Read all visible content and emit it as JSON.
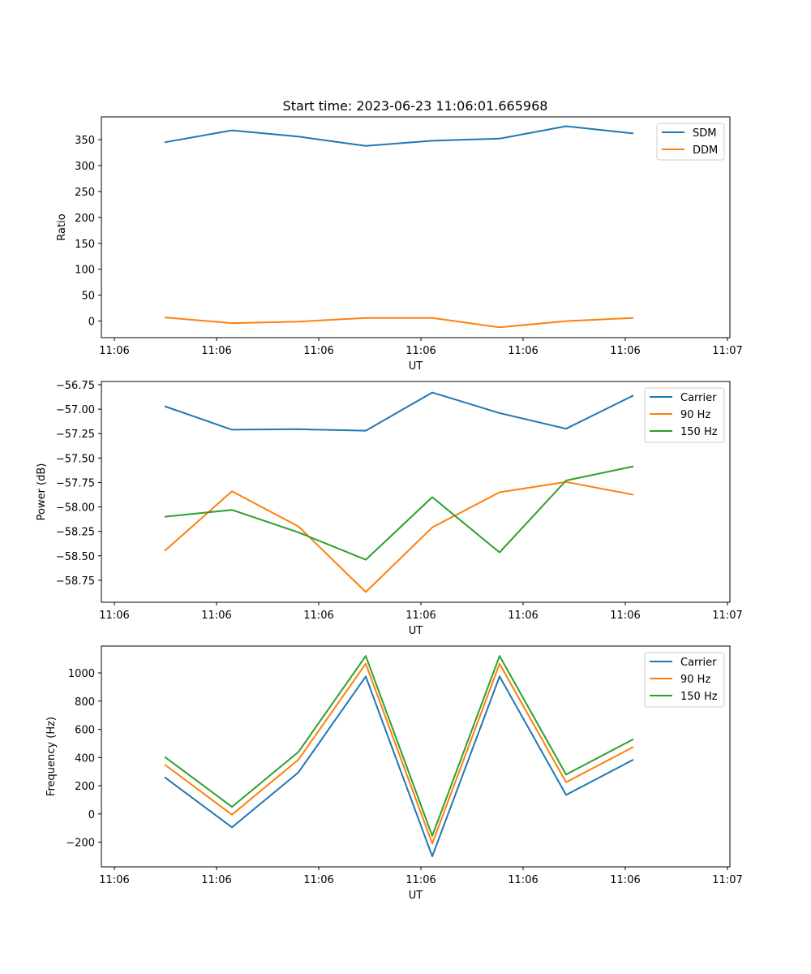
{
  "title": "Start time: 2023-06-23 11:06:01.665968",
  "chart_data": [
    {
      "type": "line",
      "title": "Start time: 2023-06-23 11:06:01.665968",
      "xlabel": "UT",
      "ylabel": "Ratio",
      "x_tick_labels": [
        "11:06",
        "11:06",
        "11:06",
        "11:06",
        "11:06",
        "11:06",
        "11:07"
      ],
      "y_ticks": [
        0,
        50,
        100,
        150,
        200,
        250,
        300,
        350
      ],
      "y_tick_labels": [
        "0",
        "50",
        "100",
        "150",
        "200",
        "250",
        "300",
        "350"
      ],
      "ylim": [
        -32,
        394
      ],
      "legend_position": "top-right",
      "grid": false,
      "series": [
        {
          "name": "SDM",
          "color": "#1f77b4",
          "values": [
            345,
            368,
            356,
            338,
            348,
            352,
            376,
            362
          ]
        },
        {
          "name": "DDM",
          "color": "#ff7f0e",
          "values": [
            7,
            -4,
            -1,
            6,
            6,
            -12,
            0,
            6
          ]
        }
      ]
    },
    {
      "type": "line",
      "title": "",
      "xlabel": "UT",
      "ylabel": "Power (dB)",
      "x_tick_labels": [
        "11:06",
        "11:06",
        "11:06",
        "11:06",
        "11:06",
        "11:06",
        "11:07"
      ],
      "y_ticks": [
        -56.75,
        -57.0,
        -57.25,
        -57.5,
        -57.75,
        -58.0,
        -58.25,
        -58.5,
        -58.75
      ],
      "y_tick_labels": [
        "−56.75",
        "−57.00",
        "−57.25",
        "−57.50",
        "−57.75",
        "−58.00",
        "−58.25",
        "−58.50",
        "−58.75"
      ],
      "ylim": [
        -58.975,
        -56.717
      ],
      "legend_position": "top-right",
      "grid": false,
      "series": [
        {
          "name": "Carrier",
          "color": "#1f77b4",
          "values": [
            -56.97,
            -57.21,
            -57.205,
            -57.22,
            -56.83,
            -57.04,
            -57.2,
            -56.86
          ]
        },
        {
          "name": "90 Hz",
          "color": "#ff7f0e",
          "values": [
            -58.45,
            -57.84,
            -58.2,
            -58.87,
            -58.21,
            -57.85,
            -57.745,
            -57.875
          ]
        },
        {
          "name": "150 Hz",
          "color": "#2ca02c",
          "values": [
            -58.1,
            -58.03,
            -58.26,
            -58.54,
            -57.9,
            -58.465,
            -57.73,
            -57.585
          ]
        }
      ]
    },
    {
      "type": "line",
      "title": "",
      "xlabel": "UT",
      "ylabel": "Frequency (Hz)",
      "x_tick_labels": [
        "11:06",
        "11:06",
        "11:06",
        "11:06",
        "11:06",
        "11:06",
        "11:07"
      ],
      "y_ticks": [
        -200,
        0,
        200,
        400,
        600,
        800,
        1000
      ],
      "y_tick_labels": [
        "−200",
        "0",
        "200",
        "400",
        "600",
        "800",
        "1000"
      ],
      "ylim": [
        -375,
        1190
      ],
      "legend_position": "top-right",
      "grid": false,
      "series": [
        {
          "name": "Carrier",
          "color": "#1f77b4",
          "values": [
            260,
            -95,
            295,
            975,
            -300,
            975,
            135,
            385
          ]
        },
        {
          "name": "90 Hz",
          "color": "#ff7f0e",
          "values": [
            350,
            -5,
            385,
            1065,
            -210,
            1065,
            225,
            475
          ]
        },
        {
          "name": "150 Hz",
          "color": "#2ca02c",
          "values": [
            405,
            50,
            440,
            1120,
            -155,
            1120,
            280,
            530
          ]
        }
      ]
    }
  ]
}
